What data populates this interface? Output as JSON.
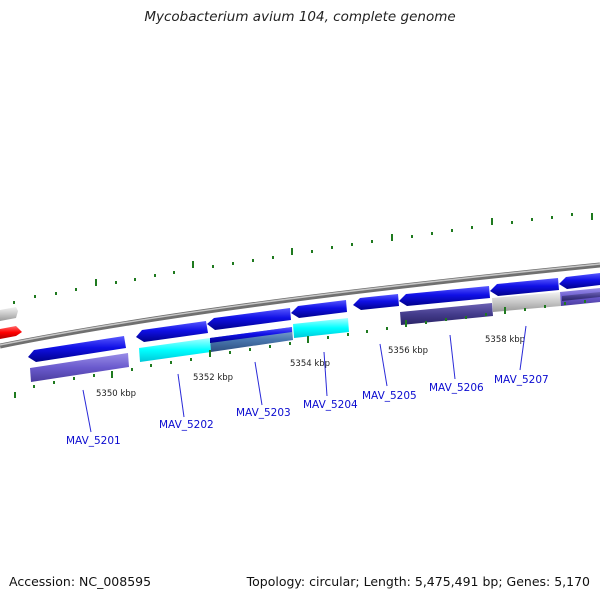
{
  "title": "Mycobacterium avium 104, complete genome",
  "footer": {
    "accession": "Accession: NC_008595",
    "stats": "Topology: circular; Length: 5,475,491 bp; Genes: 5,170"
  },
  "kbp_labels": [
    "5350 kbp",
    "5352 kbp",
    "5354 kbp",
    "5356 kbp",
    "5358 kbp"
  ],
  "genes": [
    {
      "id": "MAV_5201",
      "label": "MAV_5201"
    },
    {
      "id": "MAV_5202",
      "label": "MAV_5202"
    },
    {
      "id": "MAV_5203",
      "label": "MAV_5203"
    },
    {
      "id": "MAV_5204",
      "label": "MAV_5204"
    },
    {
      "id": "MAV_5205",
      "label": "MAV_5205"
    },
    {
      "id": "MAV_5206",
      "label": "MAV_5206"
    },
    {
      "id": "MAV_5207",
      "label": "MAV_5207"
    }
  ],
  "colors": {
    "gene_label": "#0b0bd0",
    "forward_cds": "#1010e6",
    "rna_highlight": "#00ffff",
    "homolog_band": "#6a5acd",
    "backbone": "#808080",
    "tick": "#1f7a1f",
    "reverse_cds": "#ff0000"
  }
}
